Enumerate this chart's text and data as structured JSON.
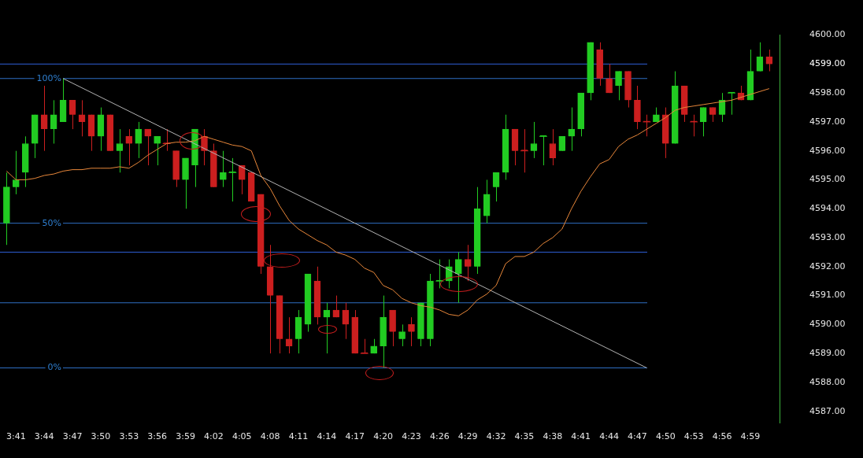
{
  "chart_data": {
    "type": "candlestick",
    "x": [
      3.6667,
      3.6833,
      3.7,
      3.7167,
      3.7333,
      3.75,
      3.7667,
      3.7833,
      3.8,
      3.8167,
      3.8333,
      3.85,
      3.8667,
      3.8833,
      3.9,
      3.9167,
      3.9333,
      3.95,
      3.9667,
      3.9833,
      4.0,
      4.0167,
      4.0333,
      4.05,
      4.0667,
      4.0833,
      4.1,
      4.1167,
      4.1333,
      4.15,
      4.1667,
      4.1833,
      4.2,
      4.2167,
      4.2333,
      4.25,
      4.2667,
      4.2833,
      4.3,
      4.3167,
      4.3333,
      4.35,
      4.3667,
      4.3833,
      4.4,
      4.4167,
      4.4333,
      4.45,
      4.4667,
      4.4833,
      4.5,
      4.5167,
      4.5333,
      4.55,
      4.5667,
      4.5833,
      4.6,
      4.6167,
      4.6333,
      4.65,
      4.6667,
      4.6833,
      4.7,
      4.7167,
      4.7333,
      4.75,
      4.7667,
      4.7833,
      4.8,
      4.8167,
      4.8333,
      4.85,
      4.8667,
      4.8833,
      4.9,
      4.9167,
      4.9333,
      4.95,
      4.9667,
      4.9833,
      5.0,
      5.0167
    ],
    "ohlc": [
      [
        4593.5,
        4595.25,
        4592.75,
        4594.75
      ],
      [
        4594.75,
        4596,
        4594.5,
        4595
      ],
      [
        4595.25,
        4596.5,
        4594.75,
        4596.25
      ],
      [
        4596.25,
        4597.25,
        4595.75,
        4597.25
      ],
      [
        4597.25,
        4598.25,
        4596,
        4596.75
      ],
      [
        4596.75,
        4597.75,
        4596.25,
        4597.25
      ],
      [
        4597,
        4598.5,
        4597,
        4597.75
      ],
      [
        4597.75,
        4597.75,
        4596.75,
        4597.25
      ],
      [
        4597.25,
        4597.75,
        4596.5,
        4597
      ],
      [
        4597.25,
        4597.25,
        4596,
        4596.5
      ],
      [
        4596.5,
        4597.5,
        4596,
        4597.25
      ],
      [
        4597.25,
        4597.25,
        4596,
        4596
      ],
      [
        4596,
        4596.75,
        4595.25,
        4596.25
      ],
      [
        4596.5,
        4596.75,
        4595.5,
        4596.25
      ],
      [
        4596.25,
        4597,
        4595.75,
        4596.75
      ],
      [
        4596.75,
        4596.75,
        4595.5,
        4596.5
      ],
      [
        4596.25,
        4596.5,
        4595.5,
        4596.5
      ],
      [
        4596.25,
        4596.75,
        4596,
        4596.25
      ],
      [
        4596,
        4596,
        4594.75,
        4595
      ],
      [
        4595,
        4595.75,
        4594,
        4595.75
      ],
      [
        4595.5,
        4596.75,
        4594.75,
        4596.75
      ],
      [
        4596.5,
        4596.75,
        4595.5,
        4596
      ],
      [
        4596,
        4596.25,
        4594.75,
        4594.75
      ],
      [
        4595,
        4596,
        4594.75,
        4595.25
      ],
      [
        4595.25,
        4595.75,
        4594.25,
        4595.25
      ],
      [
        4595.5,
        4595.5,
        4594.5,
        4595
      ],
      [
        4595.25,
        4595.25,
        4594.25,
        4594.25
      ],
      [
        4594.5,
        4594.5,
        4591.75,
        4592
      ],
      [
        4592,
        4592.75,
        4589,
        4591
      ],
      [
        4591,
        4591,
        4589,
        4589.5
      ],
      [
        4589.5,
        4590.25,
        4589,
        4589.25
      ],
      [
        4589.5,
        4590.5,
        4589,
        4590.25
      ],
      [
        4590,
        4591.75,
        4589.75,
        4591.75
      ],
      [
        4591.5,
        4592,
        4590,
        4590.25
      ],
      [
        4590.25,
        4590.75,
        4589,
        4590.5
      ],
      [
        4590.5,
        4591,
        4590.25,
        4590.25
      ],
      [
        4590.5,
        4590.75,
        4589.5,
        4590
      ],
      [
        4590.25,
        4590.5,
        4589,
        4589
      ],
      [
        4589,
        4589.5,
        4589,
        4589
      ],
      [
        4589,
        4589.5,
        4589,
        4589.25
      ],
      [
        4589.25,
        4591,
        4588.5,
        4590.25
      ],
      [
        4590.5,
        4590.5,
        4589.25,
        4589.75
      ],
      [
        4589.5,
        4590,
        4589.25,
        4589.75
      ],
      [
        4590,
        4590.25,
        4589.25,
        4589.75
      ],
      [
        4589.5,
        4590.75,
        4589.25,
        4590.75
      ],
      [
        4589.5,
        4591.75,
        4589.25,
        4591.5
      ],
      [
        4591.5,
        4592.25,
        4591.25,
        4591.5
      ],
      [
        4591.5,
        4592.25,
        4591.25,
        4592
      ],
      [
        4591.75,
        4592.5,
        4590.75,
        4592.25
      ],
      [
        4592.25,
        4592.75,
        4591.5,
        4592
      ],
      [
        4592,
        4594.75,
        4591.75,
        4594
      ],
      [
        4593.75,
        4595,
        4593.5,
        4594.5
      ],
      [
        4594.75,
        4595.25,
        4594.25,
        4595.25
      ],
      [
        4595.25,
        4597.25,
        4595,
        4596.75
      ],
      [
        4596.75,
        4596.75,
        4595.5,
        4596
      ],
      [
        4596,
        4596.75,
        4595.25,
        4596
      ],
      [
        4596,
        4597,
        4595.75,
        4596.25
      ],
      [
        4596.5,
        4596.5,
        4595.5,
        4596.5
      ],
      [
        4596.25,
        4596.75,
        4595.5,
        4595.75
      ],
      [
        4596,
        4596.5,
        4596,
        4596.5
      ],
      [
        4596.5,
        4597.5,
        4596,
        4596.75
      ],
      [
        4596.75,
        4598,
        4596.5,
        4598
      ],
      [
        4598,
        4599.75,
        4597.75,
        4599.75
      ],
      [
        4599.5,
        4599.75,
        4598.25,
        4598.5
      ],
      [
        4598.5,
        4599,
        4598,
        4598
      ],
      [
        4598.25,
        4598.75,
        4597.75,
        4598.75
      ],
      [
        4598.75,
        4598.75,
        4597.5,
        4597.75
      ],
      [
        4597.75,
        4598.25,
        4596.75,
        4597
      ],
      [
        4597,
        4597.25,
        4596.5,
        4597
      ],
      [
        4597,
        4597.5,
        4597,
        4597.25
      ],
      [
        4597.25,
        4597.5,
        4595.75,
        4596.25
      ],
      [
        4596.25,
        4598.75,
        4596.25,
        4598.25
      ],
      [
        4598.25,
        4598.25,
        4597,
        4597.25
      ],
      [
        4597,
        4597.25,
        4596.5,
        4597
      ],
      [
        4597,
        4597.5,
        4596.5,
        4597.5
      ],
      [
        4597.5,
        4597.5,
        4597,
        4597.25
      ],
      [
        4597.25,
        4598,
        4597,
        4597.75
      ],
      [
        4598,
        4598,
        4597.25,
        4598
      ],
      [
        4598,
        4598.25,
        4597.75,
        4597.75
      ],
      [
        4597.75,
        4599.5,
        4597.75,
        4598.75
      ],
      [
        4598.75,
        4599.75,
        4598.75,
        4599.25
      ],
      [
        4599.25,
        4599.5,
        4598.75,
        4599
      ]
    ],
    "colors": [
      "#22cc22",
      "#22cc22",
      "#22cc22",
      "#22cc22",
      "#cc1f1f",
      "#22cc22",
      "#22cc22",
      "#cc1f1f",
      "#cc1f1f",
      "#cc1f1f",
      "#22cc22",
      "#cc1f1f",
      "#22cc22",
      "#cc1f1f",
      "#22cc22",
      "#cc1f1f",
      "#22cc22",
      "#cc1f1f",
      "#cc1f1f",
      "#22cc22",
      "#22cc22",
      "#cc1f1f",
      "#cc1f1f",
      "#22cc22",
      "#22cc22",
      "#cc1f1f",
      "#cc1f1f",
      "#cc1f1f",
      "#cc1f1f",
      "#cc1f1f",
      "#cc1f1f",
      "#22cc22",
      "#22cc22",
      "#cc1f1f",
      "#22cc22",
      "#cc1f1f",
      "#cc1f1f",
      "#cc1f1f",
      "#cc1f1f",
      "#22cc22",
      "#22cc22",
      "#cc1f1f",
      "#22cc22",
      "#cc1f1f",
      "#22cc22",
      "#22cc22",
      "#22cc22",
      "#22cc22",
      "#22cc22",
      "#cc1f1f",
      "#22cc22",
      "#22cc22",
      "#22cc22",
      "#22cc22",
      "#cc1f1f",
      "#cc1f1f",
      "#22cc22",
      "#22cc22",
      "#cc1f1f",
      "#22cc22",
      "#22cc22",
      "#22cc22",
      "#22cc22",
      "#cc1f1f",
      "#cc1f1f",
      "#22cc22",
      "#cc1f1f",
      "#cc1f1f",
      "#cc1f1f",
      "#22cc22",
      "#cc1f1f",
      "#22cc22",
      "#cc1f1f",
      "#cc1f1f",
      "#22cc22",
      "#cc1f1f",
      "#22cc22",
      "#22cc22",
      "#cc1f1f",
      "#22cc22",
      "#22cc22",
      "#cc1f1f"
    ],
    "series": [
      {
        "type": "line",
        "color": "#e8873a",
        "values": [
          4595.3,
          4595.0,
          4595.0,
          4595.05,
          4595.15,
          4595.2,
          4595.3,
          4595.35,
          4595.35,
          4595.4,
          4595.4,
          4595.4,
          4595.45,
          4595.4,
          4595.6,
          4595.85,
          4596.05,
          4596.25,
          4596.3,
          4596.3,
          4596.35,
          4596.5,
          4596.4,
          4596.3,
          4596.2,
          4596.15,
          4596.0,
          4595.15,
          4594.7,
          4594.1,
          4593.6,
          4593.3,
          4593.1,
          4592.9,
          4592.75,
          4592.5,
          4592.4,
          4592.25,
          4591.95,
          4591.8,
          4591.35,
          4591.2,
          4590.9,
          4590.75,
          4590.65,
          4590.6,
          4590.5,
          4590.35,
          4590.3,
          4590.5,
          4590.85,
          4591.05,
          4591.35,
          4592.1,
          4592.35,
          4592.35,
          4592.5,
          4592.8,
          4593.0,
          4593.3,
          4594.0,
          4594.6,
          4595.1,
          4595.55,
          4595.7,
          4596.15,
          4596.4,
          4596.55,
          4596.75,
          4596.95,
          4597.15,
          4597.4,
          4597.5,
          4597.55,
          4597.6,
          4597.65,
          4597.7,
          4597.75,
          4597.85,
          4597.95,
          4598.05,
          4598.15
        ]
      },
      {
        "type": "line",
        "color": "#b4b4b4",
        "x": [
          3.7667,
          4.8
        ],
        "values": [
          4598.5,
          4588.5
        ]
      }
    ],
    "ref_lines": [
      {
        "axis": "y",
        "value": 4599,
        "color": "#2f5fd6"
      },
      {
        "axis": "y",
        "value": 4598.5,
        "color": "#2f6fc4"
      },
      {
        "axis": "y",
        "value": 4593.5,
        "color": "#2f6fc4"
      },
      {
        "axis": "y",
        "value": 4592.5,
        "color": "#2f5fd6"
      },
      {
        "axis": "y",
        "value": 4590.75,
        "color": "#2f6fc4"
      },
      {
        "axis": "y",
        "value": 4588.5,
        "color": "#2f6fc4"
      }
    ],
    "annotations": [
      {
        "text": "100%",
        "y": 4598.5
      },
      {
        "text": "50%",
        "y": 4593.5
      },
      {
        "text": "0%",
        "y": 4588.5
      }
    ],
    "xlim": [
      3.655,
      5.035
    ],
    "xticks": [
      {
        "value": 3.6833,
        "label": "3:41"
      },
      {
        "value": 3.7333,
        "label": "3:44"
      },
      {
        "value": 3.7833,
        "label": "3:47"
      },
      {
        "value": 3.8333,
        "label": "3:50"
      },
      {
        "value": 3.8833,
        "label": "3:53"
      },
      {
        "value": 3.9333,
        "label": "3:56"
      },
      {
        "value": 3.9833,
        "label": "3:59"
      },
      {
        "value": 4.0333,
        "label": "4:02"
      },
      {
        "value": 4.0833,
        "label": "4:05"
      },
      {
        "value": 4.1333,
        "label": "4:08"
      },
      {
        "value": 4.1833,
        "label": "4:11"
      },
      {
        "value": 4.2333,
        "label": "4:14"
      },
      {
        "value": 4.2833,
        "label": "4:17"
      },
      {
        "value": 4.3333,
        "label": "4:20"
      },
      {
        "value": 4.3833,
        "label": "4:23"
      },
      {
        "value": 4.4333,
        "label": "4:26"
      },
      {
        "value": 4.4833,
        "label": "4:29"
      },
      {
        "value": 4.5333,
        "label": "4:32"
      },
      {
        "value": 4.5833,
        "label": "4:35"
      },
      {
        "value": 4.6333,
        "label": "4:38"
      },
      {
        "value": 4.6833,
        "label": "4:41"
      },
      {
        "value": 4.7333,
        "label": "4:44"
      },
      {
        "value": 4.7833,
        "label": "4:47"
      },
      {
        "value": 4.8333,
        "label": "4:50"
      },
      {
        "value": 4.8833,
        "label": "4:53"
      },
      {
        "value": 4.9333,
        "label": "4:56"
      },
      {
        "value": 4.9833,
        "label": "4:59"
      }
    ],
    "ylim": [
      4586.6,
      4600
    ],
    "yticks": [
      {
        "value": 4587,
        "label": "4587.00"
      },
      {
        "value": 4588,
        "label": "4588.00"
      },
      {
        "value": 4589,
        "label": "4589.00"
      },
      {
        "value": 4590,
        "label": "4590.00"
      },
      {
        "value": 4591,
        "label": "4591.00"
      },
      {
        "value": 4592,
        "label": "4592.00"
      },
      {
        "value": 4593,
        "label": "4593.00"
      },
      {
        "value": 4594,
        "label": "4594.00"
      },
      {
        "value": 4595,
        "label": "4595.00"
      },
      {
        "value": 4596,
        "label": "4596.00"
      },
      {
        "value": 4597,
        "label": "4597.00"
      },
      {
        "value": 4598,
        "label": "4598.00"
      },
      {
        "value": 4599,
        "label": "4599.00"
      },
      {
        "value": 4600,
        "label": "4600.00"
      }
    ]
  }
}
